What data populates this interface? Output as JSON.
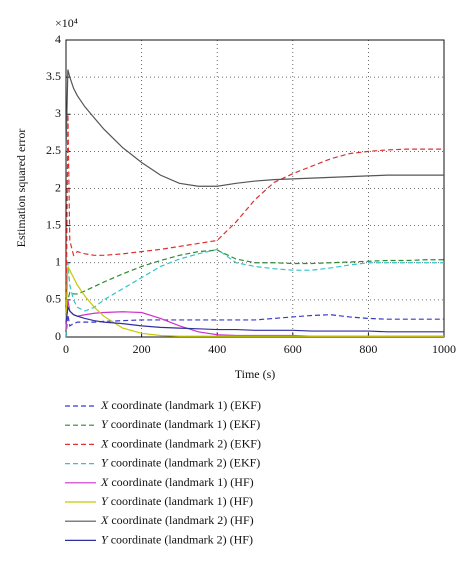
{
  "chart_data": {
    "type": "line",
    "y_label": "Estimation squared error",
    "x_label": "Time (s)",
    "y_multiplier": "×10⁴",
    "xlim": [
      0,
      1000
    ],
    "ylim": [
      0,
      4
    ],
    "xticks": [
      0,
      200,
      400,
      600,
      800,
      1000
    ],
    "yticks": [
      0,
      0.5,
      1,
      1.5,
      2,
      2.5,
      3,
      3.5,
      4
    ],
    "grid": true,
    "x": [
      0,
      5,
      10,
      20,
      30,
      50,
      75,
      100,
      150,
      200,
      250,
      300,
      350,
      400,
      450,
      500,
      550,
      600,
      650,
      700,
      750,
      800,
      850,
      900,
      950,
      1000
    ],
    "series": [
      {
        "name": "X coordinate (landmark 1) (EKF)",
        "color": "#3a3acc",
        "dashed": true,
        "values": [
          0,
          0.3,
          0.15,
          0.18,
          0.2,
          0.2,
          0.2,
          0.21,
          0.22,
          0.23,
          0.23,
          0.23,
          0.23,
          0.23,
          0.23,
          0.23,
          0.25,
          0.27,
          0.29,
          0.3,
          0.27,
          0.25,
          0.24,
          0.24,
          0.24,
          0.24
        ]
      },
      {
        "name": "Y coordinate (landmark 1) (EKF)",
        "color": "#2e8b2e",
        "dashed": true,
        "values": [
          0,
          0.5,
          0.6,
          0.58,
          0.58,
          0.62,
          0.68,
          0.74,
          0.85,
          0.95,
          1.03,
          1.1,
          1.15,
          1.17,
          1.05,
          1.0,
          1.0,
          0.99,
          0.99,
          1.0,
          1.01,
          1.02,
          1.03,
          1.03,
          1.04,
          1.04
        ]
      },
      {
        "name": "X coordinate (landmark 2) (EKF)",
        "color": "#e03030",
        "dashed": true,
        "values": [
          0,
          3.0,
          1.3,
          1.1,
          1.15,
          1.12,
          1.1,
          1.1,
          1.12,
          1.15,
          1.18,
          1.22,
          1.26,
          1.3,
          1.55,
          1.85,
          2.08,
          2.2,
          2.3,
          2.4,
          2.47,
          2.5,
          2.52,
          2.53,
          2.53,
          2.53
        ]
      },
      {
        "name": "Y coordinate (landmark 2) (EKF)",
        "color": "#33c4cc",
        "dashed": true,
        "values": [
          0,
          1.0,
          0.7,
          0.5,
          0.4,
          0.35,
          0.4,
          0.5,
          0.65,
          0.8,
          0.95,
          1.05,
          1.12,
          1.18,
          1.0,
          0.95,
          0.92,
          0.9,
          0.9,
          0.93,
          0.97,
          1.0,
          1.0,
          1.0,
          1.0,
          1.0
        ]
      },
      {
        "name": "X coordinate (landmark 1) (HF)",
        "color": "#cc33cc",
        "dashed": false,
        "values": [
          0.1,
          0.5,
          0.35,
          0.3,
          0.28,
          0.3,
          0.32,
          0.33,
          0.34,
          0.33,
          0.25,
          0.15,
          0.07,
          0.03,
          0.02,
          0.02,
          0.02,
          0.02,
          0.01,
          0.01,
          0.01,
          0.01,
          0.01,
          0.01,
          0.01,
          0.01
        ]
      },
      {
        "name": "Y coordinate (landmark 1) (HF)",
        "color": "#c8c800",
        "dashed": false,
        "values": [
          0.2,
          0.95,
          0.9,
          0.8,
          0.7,
          0.55,
          0.4,
          0.28,
          0.12,
          0.05,
          0.02,
          0.01,
          0.01,
          0.01,
          0.01,
          0.01,
          0.01,
          0.01,
          0.01,
          0.01,
          0.01,
          0.01,
          0.01,
          0.01,
          0.01,
          0.01
        ]
      },
      {
        "name": "X coordinate (landmark 2) (HF)",
        "color": "#555555",
        "dashed": false,
        "values": [
          2.5,
          3.6,
          3.5,
          3.35,
          3.25,
          3.1,
          2.95,
          2.8,
          2.55,
          2.35,
          2.18,
          2.07,
          2.03,
          2.03,
          2.07,
          2.1,
          2.12,
          2.13,
          2.14,
          2.15,
          2.16,
          2.17,
          2.18,
          2.18,
          2.18,
          2.18
        ]
      },
      {
        "name": "Y coordinate (landmark 2) (HF)",
        "color": "#2f2fa0",
        "dashed": false,
        "values": [
          0.2,
          0.4,
          0.35,
          0.3,
          0.28,
          0.25,
          0.22,
          0.2,
          0.18,
          0.15,
          0.13,
          0.12,
          0.11,
          0.1,
          0.1,
          0.09,
          0.09,
          0.09,
          0.08,
          0.08,
          0.08,
          0.08,
          0.07,
          0.07,
          0.07,
          0.07
        ]
      }
    ]
  }
}
